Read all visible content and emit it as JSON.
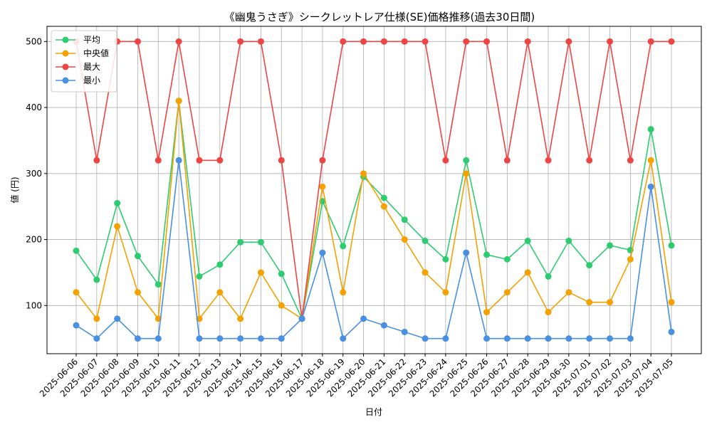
{
  "chart_data": {
    "type": "line",
    "title": "《幽鬼うさぎ》シークレットレア仕様(SE)価格推移(過去30日間)",
    "xlabel": "日付",
    "ylabel": "値 (円)",
    "ylim": [
      27,
      523
    ],
    "yticks": [
      100,
      200,
      300,
      400,
      500
    ],
    "grid": true,
    "legend_position": "top-left",
    "categories": [
      "2025-06-06",
      "2025-06-07",
      "2025-06-08",
      "2025-06-09",
      "2025-06-10",
      "2025-06-11",
      "2025-06-12",
      "2025-06-13",
      "2025-06-14",
      "2025-06-15",
      "2025-06-16",
      "2025-06-17",
      "2025-06-18",
      "2025-06-19",
      "2025-06-20",
      "2025-06-21",
      "2025-06-22",
      "2025-06-23",
      "2025-06-24",
      "2025-06-25",
      "2025-06-26",
      "2025-06-27",
      "2025-06-28",
      "2025-06-29",
      "2025-06-30",
      "2025-07-01",
      "2025-07-02",
      "2025-07-03",
      "2025-07-04",
      "2025-07-05"
    ],
    "series": [
      {
        "name": "平均",
        "color": "#2ecc71",
        "values": [
          183,
          139,
          255,
          175,
          132,
          410,
          144,
          162,
          196,
          196,
          148,
          80,
          258,
          190,
          295,
          263,
          230,
          198,
          170,
          320,
          177,
          170,
          198,
          144,
          198,
          161,
          191,
          184,
          367,
          191
        ]
      },
      {
        "name": "中央値",
        "color": "#f5a100",
        "values": [
          120,
          80,
          220,
          120,
          80,
          410,
          80,
          120,
          80,
          150,
          100,
          80,
          280,
          120,
          300,
          250,
          200,
          150,
          120,
          300,
          90,
          120,
          150,
          90,
          120,
          105,
          105,
          170,
          320,
          105
        ]
      },
      {
        "name": "最大",
        "color": "#ef4444",
        "values": [
          500,
          320,
          500,
          500,
          320,
          500,
          320,
          320,
          500,
          500,
          320,
          80,
          320,
          500,
          500,
          500,
          500,
          500,
          320,
          500,
          500,
          320,
          500,
          320,
          500,
          320,
          500,
          320,
          500,
          500
        ]
      },
      {
        "name": "最小",
        "color": "#4a90e2",
        "values": [
          70,
          50,
          80,
          50,
          50,
          320,
          50,
          50,
          50,
          50,
          50,
          80,
          180,
          50,
          80,
          70,
          60,
          50,
          50,
          180,
          50,
          50,
          50,
          50,
          50,
          50,
          50,
          50,
          280,
          60
        ]
      }
    ]
  }
}
